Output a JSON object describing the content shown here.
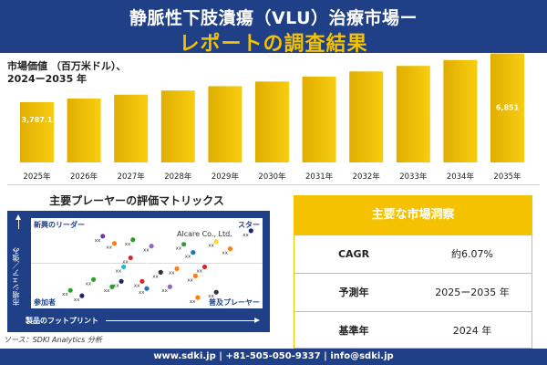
{
  "header": {
    "title_line1": "静脈性下肢潰瘍（VLU）治療市場ー",
    "title_line2": "レポートの調査結果"
  },
  "chart_subtitle": "市場価値 （百万米ドル）、\n2024ー2035 年",
  "chart_data": {
    "type": "bar",
    "categories": [
      "2025年",
      "2026年",
      "2027年",
      "2028年",
      "2029年",
      "2030年",
      "2031年",
      "2032年",
      "2033年",
      "2034年",
      "2035年"
    ],
    "values": [
      3787.1,
      4017,
      4261,
      4520,
      4795,
      5086,
      5395,
      5722,
      6070,
      6438,
      6851
    ],
    "value_labels": {
      "0": "3,787.1",
      "10": "6,851"
    },
    "ylim": [
      0,
      7000
    ],
    "bar_color": "#e0ae00",
    "bar_color_light": "#f8cd10"
  },
  "matrix": {
    "title": "主要プレーヤーの評価マトリックス",
    "quadrants": {
      "top_left": "新興のリーダー",
      "top_right": "スター",
      "bottom_left": "参加者",
      "bottom_right": "普及プレーヤー"
    },
    "y_axis": "市場シェア／強み",
    "x_axis": "製品のフットプリント",
    "highlight_label": "Alcare Co., Ltd.",
    "points": [
      {
        "x": 0.31,
        "y": 0.8,
        "color": "#6a3d9a",
        "label": "xx"
      },
      {
        "x": 0.36,
        "y": 0.72,
        "color": "#ff7f0e",
        "label": "xx"
      },
      {
        "x": 0.44,
        "y": 0.76,
        "color": "#2ca02c",
        "label": "xx"
      },
      {
        "x": 0.52,
        "y": 0.69,
        "color": "#9467bd",
        "label": "xx"
      },
      {
        "x": 0.66,
        "y": 0.71,
        "color": "#2ca02c",
        "label": "xx"
      },
      {
        "x": 0.7,
        "y": 0.62,
        "color": "#1f77b4",
        "label": "xx"
      },
      {
        "x": 0.8,
        "y": 0.74,
        "color": "#fdd835",
        "label": "xx"
      },
      {
        "x": 0.86,
        "y": 0.66,
        "color": "#ff7f0e",
        "label": "xx"
      },
      {
        "x": 0.95,
        "y": 0.86,
        "color": "#1a2a6c",
        "label": "xx"
      },
      {
        "x": 0.43,
        "y": 0.56,
        "color": "#d62728",
        "label": "xx"
      },
      {
        "x": 0.4,
        "y": 0.46,
        "color": "#17becf",
        "label": "xx"
      },
      {
        "x": 0.56,
        "y": 0.4,
        "color": "#333333",
        "label": "xx"
      },
      {
        "x": 0.63,
        "y": 0.44,
        "color": "#ff7f0e",
        "label": "xx"
      },
      {
        "x": 0.75,
        "y": 0.46,
        "color": "#d62728",
        "label": "xx"
      },
      {
        "x": 0.71,
        "y": 0.36,
        "color": "#ff7f0e",
        "label": "xx"
      },
      {
        "x": 0.27,
        "y": 0.32,
        "color": "#2ca02c",
        "label": "xx"
      },
      {
        "x": 0.35,
        "y": 0.24,
        "color": "#2ca02c",
        "label": "xx"
      },
      {
        "x": 0.39,
        "y": 0.3,
        "color": "#1a2a6c",
        "label": "xx"
      },
      {
        "x": 0.48,
        "y": 0.3,
        "color": "#d62728",
        "label": "xx"
      },
      {
        "x": 0.5,
        "y": 0.22,
        "color": "#1f77b4",
        "label": "xx"
      },
      {
        "x": 0.6,
        "y": 0.24,
        "color": "#9467bd",
        "label": "xx"
      },
      {
        "x": 0.72,
        "y": 0.12,
        "color": "#ff7f0e",
        "label": "xx"
      },
      {
        "x": 0.8,
        "y": 0.18,
        "color": "#333333",
        "label": "xx"
      },
      {
        "x": 0.22,
        "y": 0.14,
        "color": "#1a2a6c",
        "label": "xx"
      },
      {
        "x": 0.17,
        "y": 0.2,
        "color": "#2ca02c",
        "label": "xx"
      }
    ]
  },
  "source": "ソース：SDKI Analytics 分析",
  "insights": {
    "header": "主要な市場洞察",
    "rows": [
      {
        "key": "CAGR",
        "value": "約6.07%"
      },
      {
        "key": "予測年",
        "value": "2025ー2035 年"
      },
      {
        "key": "基準年",
        "value": "2024 年"
      }
    ]
  },
  "footer": "www.sdki.jp | +81-505-050-9337 | info@sdki.jp"
}
